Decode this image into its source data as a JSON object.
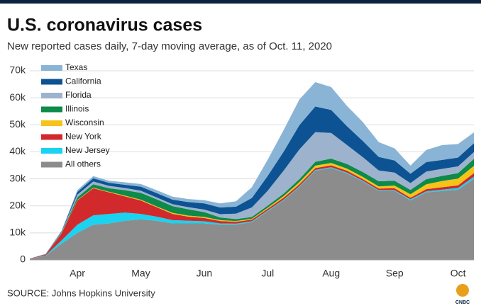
{
  "chart_data": {
    "type": "stacked-area",
    "title": "U.S. coronavirus cases",
    "subtitle": "New reported cases daily, 7-day moving average, as of Oct. 11, 2020",
    "source": "SOURCE: Johns Hopkins University",
    "brand": "CNBC",
    "categories": [
      null,
      null,
      null,
      "Apr",
      null,
      null,
      null,
      "May",
      null,
      null,
      null,
      "Jun",
      null,
      null,
      null,
      "Jul",
      null,
      null,
      null,
      "Aug",
      null,
      null,
      null,
      "Sep",
      null,
      null,
      null,
      "Oct",
      null
    ],
    "ylim": [
      0,
      70000
    ],
    "yticks": [
      0,
      {
        "value": 10000,
        "label": "10k"
      },
      {
        "value": 20000,
        "label": "20k"
      },
      {
        "value": 30000,
        "label": "30k"
      },
      {
        "value": 40000,
        "label": "40k"
      },
      {
        "value": 50000,
        "label": "50k"
      },
      {
        "value": 60000,
        "label": "60k"
      },
      {
        "value": 70000,
        "label": "70k"
      }
    ],
    "grid": true,
    "legend": "upper left",
    "series": [
      {
        "name": "All others",
        "color": "#8c8c8c",
        "values": [
          400,
          1500,
          6000,
          10000,
          13000,
          13500,
          14500,
          15000,
          14500,
          13500,
          13500,
          13500,
          13000,
          13000,
          14000,
          18000,
          22000,
          27000,
          33000,
          34000,
          32000,
          29000,
          25500,
          25500,
          22000,
          25000,
          25500,
          26000,
          30000
        ]
      },
      {
        "name": "New Jersey",
        "color": "#19d3f0",
        "values": [
          30,
          150,
          1200,
          3000,
          3500,
          3500,
          3000,
          2000,
          1500,
          1200,
          1000,
          800,
          500,
          400,
          300,
          300,
          300,
          300,
          300,
          300,
          300,
          300,
          300,
          300,
          400,
          400,
          500,
          600,
          800
        ]
      },
      {
        "name": "New York",
        "color": "#d2292d",
        "values": [
          50,
          300,
          2500,
          9000,
          10000,
          8000,
          6000,
          5000,
          3500,
          2300,
          1500,
          1200,
          900,
          700,
          600,
          600,
          700,
          700,
          700,
          700,
          700,
          600,
          600,
          700,
          600,
          800,
          900,
          1000,
          1300
        ]
      },
      {
        "name": "Wisconsin",
        "color": "#f6c318",
        "values": [
          0,
          20,
          80,
          150,
          200,
          200,
          300,
          300,
          300,
          400,
          400,
          400,
          300,
          300,
          300,
          400,
          600,
          800,
          900,
          900,
          800,
          800,
          800,
          1000,
          1300,
          1800,
          2300,
          2500,
          2700
        ]
      },
      {
        "name": "Illinois",
        "color": "#0e8a4a",
        "values": [
          5,
          50,
          250,
          1000,
          1300,
          1300,
          2000,
          2500,
          2600,
          2500,
          2300,
          1800,
          1000,
          700,
          700,
          800,
          900,
          1100,
          1400,
          1600,
          1700,
          1800,
          1900,
          1800,
          1600,
          1900,
          1900,
          2000,
          2600
        ]
      },
      {
        "name": "Florida",
        "color": "#9db2cc",
        "values": [
          5,
          60,
          250,
          1000,
          1000,
          900,
          800,
          800,
          700,
          700,
          800,
          900,
          1200,
          2000,
          3500,
          5500,
          8500,
          11000,
          11000,
          9500,
          7000,
          5500,
          4000,
          3000,
          2500,
          2800,
          2600,
          2500,
          2500
        ]
      },
      {
        "name": "California",
        "color": "#0d5393",
        "values": [
          10,
          80,
          300,
          1000,
          1200,
          1100,
          1200,
          1500,
          1600,
          1700,
          1900,
          2300,
          2500,
          2600,
          3500,
          5500,
          7000,
          9000,
          9500,
          8500,
          7000,
          6000,
          5000,
          4500,
          3500,
          3500,
          3300,
          3300,
          3300
        ]
      },
      {
        "name": "Texas",
        "color": "#8ab4d6",
        "values": [
          5,
          40,
          150,
          700,
          800,
          800,
          900,
          1000,
          1100,
          1100,
          1100,
          1200,
          1500,
          2000,
          4000,
          6000,
          8000,
          9500,
          9000,
          8500,
          7500,
          7000,
          5500,
          4500,
          3000,
          4500,
          5500,
          5000,
          4000
        ]
      }
    ]
  }
}
